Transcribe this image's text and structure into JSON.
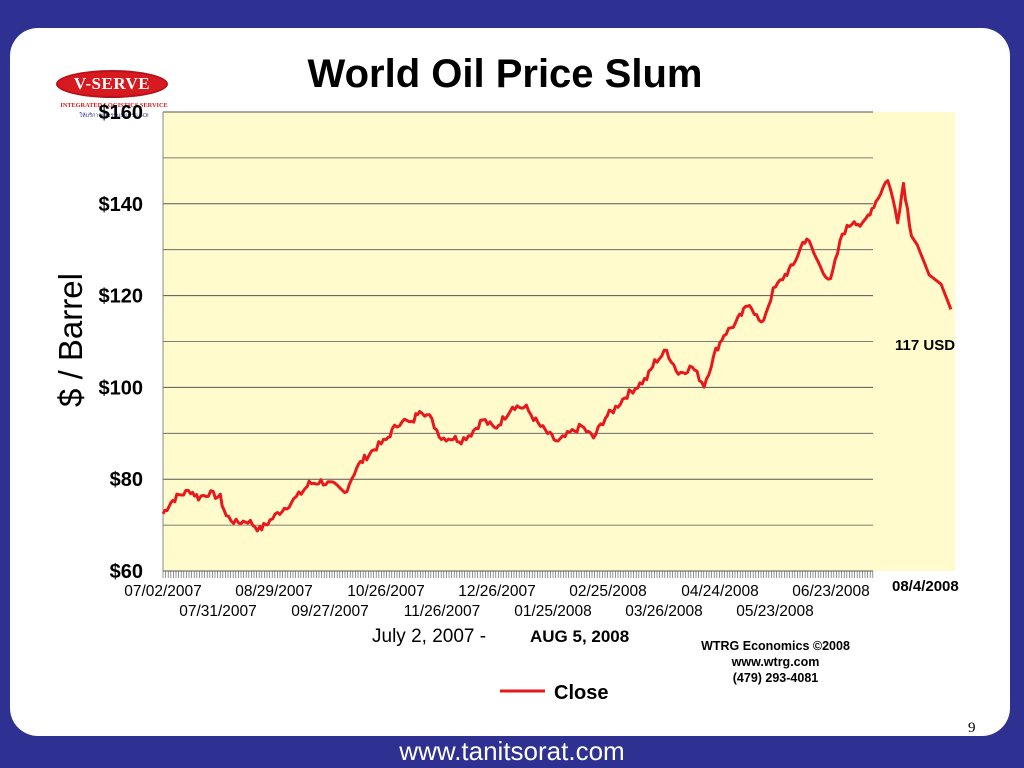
{
  "slide": {
    "title": "World Oil Price Slum",
    "page_number": "9",
    "footer_url": "www.tanitsorat.com"
  },
  "logo": {
    "name": "V-SERVE",
    "subtitle": "INTEGRATED LOGISTICS SERVICE",
    "tagline": "ให้บริการเต็มรูปแบบครบ BOI"
  },
  "source": {
    "line1": "WTRG Economics  ©2008",
    "line2": "www.wtrg.com",
    "line3": "(479) 293-4081"
  },
  "colors": {
    "background": "#2e3192",
    "plot_background": "#fffbcc",
    "series_line": "#e8191d"
  },
  "chart_data": {
    "type": "line",
    "title": "World Oil Price Slum",
    "ylabel": "$ / Barrel",
    "xlabel_part1": "July 2, 2007 -",
    "xlabel_part2": "AUG 5, 2008",
    "ylim": [
      60,
      160
    ],
    "yticks": [
      60,
      80,
      100,
      120,
      140,
      160
    ],
    "ytick_labels": [
      "$60",
      "$80",
      "$100",
      "$120",
      "$140",
      "$160"
    ],
    "xticks_row1": [
      "07/02/2007",
      "08/29/2007",
      "10/26/2007",
      "12/26/2007",
      "02/25/2008",
      "04/24/2008",
      "06/23/2008"
    ],
    "xticks_row2": [
      "07/31/2007",
      "09/27/2007",
      "11/26/2007",
      "01/25/2008",
      "03/26/2008",
      "05/23/2008"
    ],
    "grid": true,
    "legend": {
      "position": "bottom",
      "entries": [
        "Close"
      ]
    },
    "annotations": {
      "end_value": "117 USD",
      "end_date": "08/4/2008"
    },
    "series": [
      {
        "name": "Close",
        "x": [
          "2007-07-02",
          "2007-07-06",
          "2007-07-10",
          "2007-07-16",
          "2007-07-20",
          "2007-07-25",
          "2007-07-31",
          "2007-08-03",
          "2007-08-08",
          "2007-08-14",
          "2007-08-20",
          "2007-08-24",
          "2007-08-29",
          "2007-09-05",
          "2007-09-10",
          "2007-09-14",
          "2007-09-20",
          "2007-09-27",
          "2007-10-02",
          "2007-10-08",
          "2007-10-12",
          "2007-10-18",
          "2007-10-23",
          "2007-10-26",
          "2007-10-31",
          "2007-11-05",
          "2007-11-09",
          "2007-11-14",
          "2007-11-20",
          "2007-11-26",
          "2007-11-30",
          "2007-12-05",
          "2007-12-11",
          "2007-12-17",
          "2007-12-21",
          "2007-12-26",
          "2008-01-02",
          "2008-01-08",
          "2008-01-14",
          "2008-01-18",
          "2008-01-24",
          "2008-01-30",
          "2008-02-05",
          "2008-02-11",
          "2008-02-15",
          "2008-02-21",
          "2008-02-25",
          "2008-03-03",
          "2008-03-07",
          "2008-03-13",
          "2008-03-19",
          "2008-03-26",
          "2008-04-01",
          "2008-04-07",
          "2008-04-11",
          "2008-04-17",
          "2008-04-21",
          "2008-04-24",
          "2008-04-30",
          "2008-05-06",
          "2008-05-12",
          "2008-05-16",
          "2008-05-21",
          "2008-05-23",
          "2008-05-29",
          "2008-06-04",
          "2008-06-10",
          "2008-06-16",
          "2008-06-20",
          "2008-06-23",
          "2008-06-27",
          "2008-07-03",
          "2008-07-08",
          "2008-07-11",
          "2008-07-15",
          "2008-07-18",
          "2008-07-24",
          "2008-07-30",
          "2008-08-04"
        ],
        "y": [
          72.5,
          75.0,
          76.5,
          77.5,
          76.0,
          77.0,
          76.0,
          72.0,
          70.5,
          71.0,
          69.0,
          70.5,
          72.5,
          75.0,
          77.0,
          79.0,
          79.5,
          78.5,
          77.0,
          82.5,
          84.5,
          87.0,
          88.5,
          90.5,
          93.0,
          92.0,
          95.5,
          93.5,
          89.0,
          89.0,
          88.5,
          90.0,
          93.0,
          91.0,
          93.0,
          96.0,
          95.5,
          92.0,
          89.5,
          88.0,
          90.0,
          91.5,
          89.0,
          93.5,
          95.0,
          98.0,
          99.5,
          102.0,
          105.5,
          108.0,
          103.0,
          104.5,
          100.5,
          108.0,
          111.5,
          114.0,
          116.5,
          118.5,
          113.5,
          121.0,
          124.5,
          126.5,
          131.5,
          132.5,
          127.0,
          123.0,
          133.5,
          136.5,
          135.0,
          137.5,
          140.5,
          145.5,
          136.5,
          144.5,
          133.0,
          131.0,
          124.5,
          122.5,
          117.0
        ]
      }
    ]
  }
}
